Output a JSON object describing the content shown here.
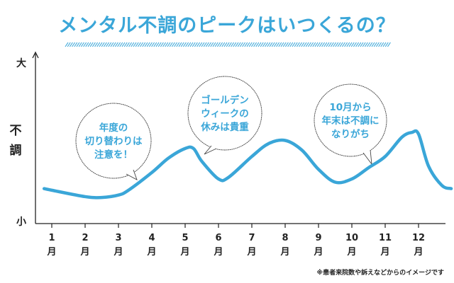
{
  "title": "メンタル不調のピークはいつくるの？",
  "note": "※患者来院数や訴えなどからのイメージです",
  "colors": {
    "line": "#3aa6d8",
    "title": "#3aa6d8",
    "axis": "#222222",
    "bubble_text": "#3aa6d8"
  },
  "chart_data": {
    "type": "line",
    "title": "メンタル不調のピークはいつくるの？",
    "ylabel": "不調",
    "y_top_label": "大",
    "y_bottom_label": "小",
    "y_scale": "qualitative (小 to 大)",
    "ylim": [
      0,
      100
    ],
    "xlim": [
      0.5,
      13
    ],
    "grid": false,
    "x_ticks": [
      {
        "value": 1,
        "label": "1",
        "unit": "月"
      },
      {
        "value": 2,
        "label": "2",
        "unit": "月"
      },
      {
        "value": 3,
        "label": "3",
        "unit": "月"
      },
      {
        "value": 4,
        "label": "4",
        "unit": "月"
      },
      {
        "value": 5,
        "label": "5",
        "unit": "月"
      },
      {
        "value": 6,
        "label": "6",
        "unit": "月"
      },
      {
        "value": 7,
        "label": "7",
        "unit": "月"
      },
      {
        "value": 8,
        "label": "8",
        "unit": "月"
      },
      {
        "value": 9,
        "label": "9",
        "unit": "月"
      },
      {
        "value": 10,
        "label": "10",
        "unit": "月"
      },
      {
        "value": 11,
        "label": "11",
        "unit": "月"
      },
      {
        "value": 12,
        "label": "12",
        "unit": "月"
      }
    ],
    "series": [
      {
        "x": [
          0.77,
          1,
          2,
          2.5,
          3,
          3.3,
          4,
          4.5,
          5,
          5.25,
          5.5,
          6,
          6.3,
          7,
          7.5,
          8,
          8.5,
          9,
          9.5,
          10,
          10.5,
          11,
          11.5,
          11.8,
          12,
          12.3,
          12.7,
          12.98
        ],
        "y": [
          20,
          19,
          15,
          14.5,
          16,
          19,
          30,
          39,
          45,
          45,
          37,
          26,
          27,
          40,
          48,
          50,
          44,
          32,
          24,
          26,
          33,
          40,
          52,
          55,
          54,
          34,
          22,
          20
        ]
      }
    ],
    "annotations": [
      {
        "lines": [
          "年度の",
          "切り替わりは",
          "注意を！"
        ],
        "points_to_month": 4
      },
      {
        "lines": [
          "ゴールデン",
          "ウィークの",
          "休みは貴重"
        ],
        "points_to_month": 5.6
      },
      {
        "lines": [
          "10月から",
          "年末は不調に",
          "なりがち"
        ],
        "points_to_month": 10.6
      }
    ]
  }
}
